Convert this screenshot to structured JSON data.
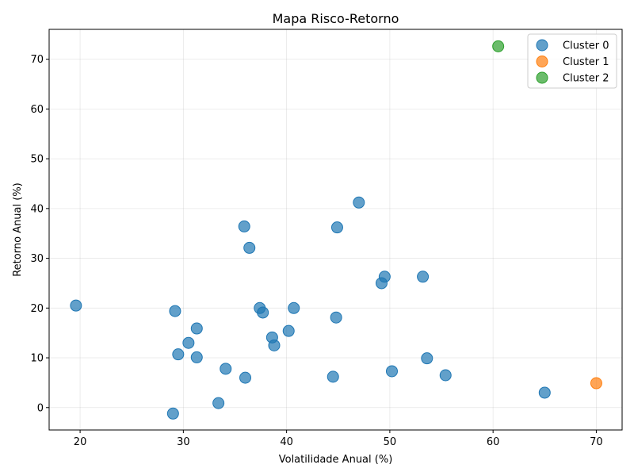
{
  "chart_data": {
    "type": "scatter",
    "title": "Mapa Risco-Retorno",
    "xlabel": "Volatilidade Anual (%)",
    "ylabel": "Retorno Anual (%)",
    "xlim": [
      17,
      72.5
    ],
    "ylim": [
      -4.5,
      76
    ],
    "xticks": [
      20,
      30,
      40,
      50,
      60,
      70
    ],
    "yticks": [
      0,
      10,
      20,
      30,
      40,
      50,
      60,
      70
    ],
    "grid": true,
    "legend_position": "top-right",
    "series": [
      {
        "name": "Cluster 0",
        "color": "#1f77b4",
        "points": [
          [
            19.6,
            20.5
          ],
          [
            29.2,
            19.4
          ],
          [
            31.3,
            15.9
          ],
          [
            30.5,
            13.0
          ],
          [
            29.5,
            10.7
          ],
          [
            31.3,
            10.1
          ],
          [
            34.1,
            7.8
          ],
          [
            36.0,
            6.0
          ],
          [
            33.4,
            0.9
          ],
          [
            29.0,
            -1.2
          ],
          [
            35.9,
            36.4
          ],
          [
            36.4,
            32.1
          ],
          [
            37.4,
            20.0
          ],
          [
            37.7,
            19.1
          ],
          [
            40.7,
            20.0
          ],
          [
            38.6,
            14.1
          ],
          [
            38.8,
            12.5
          ],
          [
            40.2,
            15.4
          ],
          [
            44.9,
            36.2
          ],
          [
            44.8,
            18.1
          ],
          [
            47.0,
            41.2
          ],
          [
            44.5,
            6.2
          ],
          [
            49.5,
            26.3
          ],
          [
            49.2,
            25.0
          ],
          [
            53.2,
            26.3
          ],
          [
            53.6,
            9.9
          ],
          [
            50.2,
            7.3
          ],
          [
            55.4,
            6.5
          ],
          [
            65.0,
            3.0
          ]
        ]
      },
      {
        "name": "Cluster 1",
        "color": "#ff7f0e",
        "points": [
          [
            70.0,
            4.9
          ]
        ]
      },
      {
        "name": "Cluster 2",
        "color": "#2ca02c",
        "points": [
          [
            60.5,
            72.6
          ]
        ]
      }
    ]
  }
}
